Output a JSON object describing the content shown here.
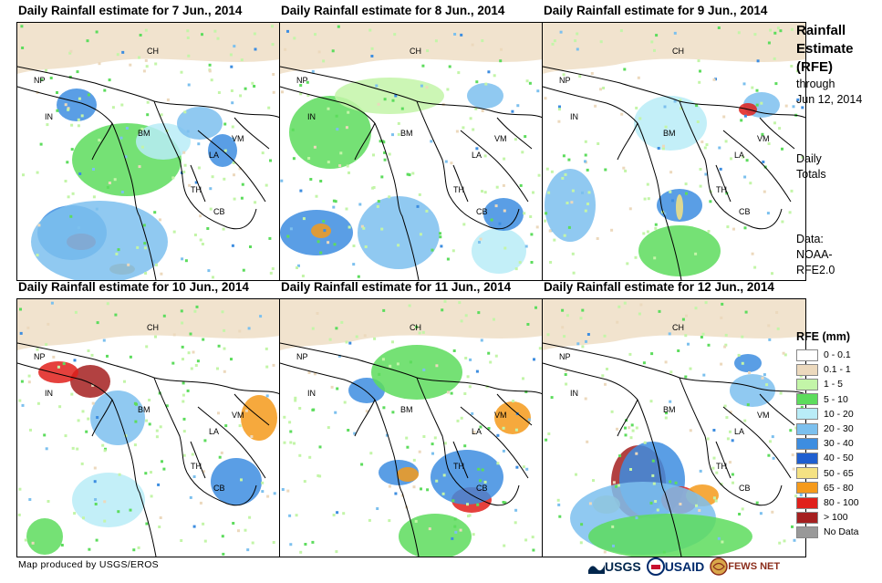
{
  "panels": [
    {
      "title": "Daily Rainfall estimate for 7 Jun., 2014"
    },
    {
      "title": "Daily Rainfall estimate for 8 Jun., 2014"
    },
    {
      "title": "Daily Rainfall estimate for 9 Jun., 2014"
    },
    {
      "title": "Daily Rainfall estimate for 10 Jun., 2014"
    },
    {
      "title": "Daily Rainfall estimate for 11 Jun., 2014"
    },
    {
      "title": "Daily Rainfall estimate for 12 Jun., 2014"
    }
  ],
  "country_labels": {
    "ch": "CH",
    "np": "NP",
    "in": "IN",
    "bm": "BM",
    "la": "LA",
    "vm": "VM",
    "th": "TH",
    "cb": "CB"
  },
  "side": {
    "title_line1": "Rainfall",
    "title_line2": "Estimate",
    "title_line3": "(RFE)",
    "through": "through",
    "date": "Jun 12, 2014",
    "daily": "Daily",
    "totals": "Totals",
    "data_label": "Data:",
    "source1": "NOAA-",
    "source2": "RFE2.0"
  },
  "legend": {
    "title": "RFE (mm)",
    "items": [
      {
        "label": "0 - 0.1",
        "color": "#ffffff"
      },
      {
        "label": "0.1 - 1",
        "color": "#ecd9bd"
      },
      {
        "label": "1 - 5",
        "color": "#c3f5a8"
      },
      {
        "label": "5 - 10",
        "color": "#5ddc5d"
      },
      {
        "label": "10 - 20",
        "color": "#b9ecf7"
      },
      {
        "label": "20 - 30",
        "color": "#7cc0ee"
      },
      {
        "label": "30 - 40",
        "color": "#3d8de0"
      },
      {
        "label": "40 - 50",
        "color": "#1f5fd0"
      },
      {
        "label": "50 - 65",
        "color": "#f5e283"
      },
      {
        "label": "65 - 80",
        "color": "#f59a1b"
      },
      {
        "label": "80 - 100",
        "color": "#e0201b"
      },
      {
        "label": "> 100",
        "color": "#a52020"
      },
      {
        "label": "No Data",
        "color": "#999999"
      }
    ]
  },
  "credit": "Map produced by USGS/EROS",
  "logos": {
    "usgs": "USGS",
    "usaid": "USAID",
    "fewsnet": "FEWS NET"
  }
}
